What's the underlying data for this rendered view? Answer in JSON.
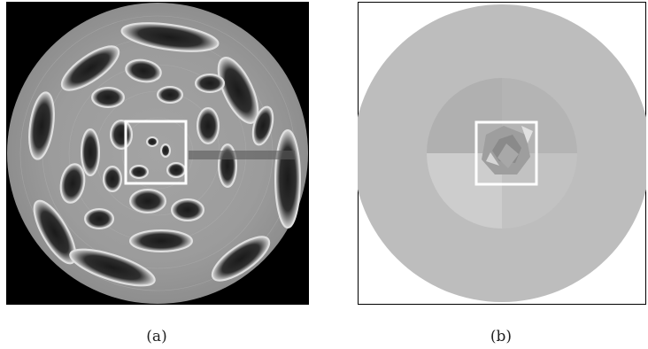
{
  "figure": {
    "panels": [
      {
        "id": "a",
        "caption": "(a)",
        "description_colors": {
          "background": "#000000",
          "disk": "#9a9a9a",
          "blob": "#2a2a2a",
          "roi_box": "#ffffff"
        }
      },
      {
        "id": "b",
        "caption": "(b)",
        "description_colors": {
          "background": "#ffffff",
          "disk": "#b8b8b8",
          "inner_disk": "#aeaeae",
          "roi_box": "#ffffff"
        }
      }
    ]
  }
}
